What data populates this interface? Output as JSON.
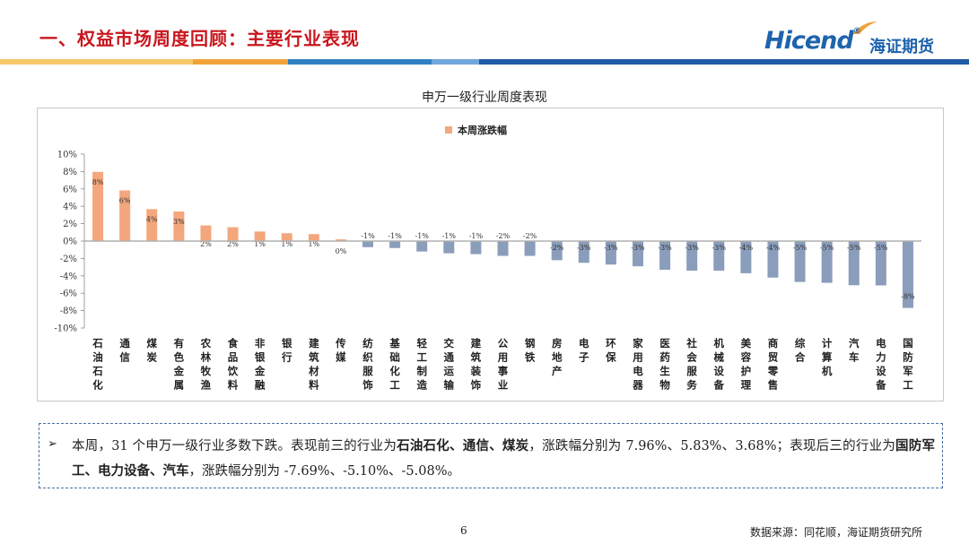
{
  "header": {
    "title": "一、权益市场周度回顾：主要行业表现"
  },
  "logo": {
    "text_en": "Hicend",
    "registered": "®",
    "text_cn": "海证期货"
  },
  "stripe_colors": [
    "#f7c96b",
    "#f2a23a",
    "#2f7fc2",
    "#6fa8dc",
    "#1f5aa6"
  ],
  "chart_data": {
    "type": "bar",
    "title": "申万一级行业周度表现",
    "legend": [
      "本周涨跌幅"
    ],
    "legend_position": "top-center",
    "ylim": [
      -10,
      10
    ],
    "yticks": [
      "10%",
      "8%",
      "6%",
      "4%",
      "2%",
      "0%",
      "-2%",
      "-4%",
      "-6%",
      "-8%",
      "-10%"
    ],
    "ytick_values": [
      10,
      8,
      6,
      4,
      2,
      0,
      -2,
      -4,
      -6,
      -8,
      -10
    ],
    "categories": [
      "石油石化",
      "通信",
      "煤炭",
      "有色金属",
      "农林牧渔",
      "食品饮料",
      "非银金融",
      "银行",
      "建筑材料",
      "传媒",
      "纺织服饰",
      "基础化工",
      "轻工制造",
      "交通运输",
      "建筑装饰",
      "公用事业",
      "钢铁",
      "房地产",
      "电子",
      "环保",
      "家用电器",
      "医药生物",
      "社会服务",
      "机械设备",
      "美容护理",
      "商贸零售",
      "综合",
      "计算机",
      "汽车",
      "电力设备",
      "国防军工"
    ],
    "values": [
      7.96,
      5.83,
      3.68,
      3.4,
      1.8,
      1.6,
      1.1,
      0.9,
      0.8,
      0.2,
      -0.7,
      -0.8,
      -1.2,
      -1.4,
      -1.5,
      -1.7,
      -1.7,
      -2.2,
      -2.5,
      -2.7,
      -2.9,
      -3.3,
      -3.4,
      -3.4,
      -3.7,
      -4.2,
      -4.7,
      -4.8,
      -5.08,
      -5.1,
      -7.69
    ],
    "data_labels": [
      "8%",
      "6%",
      "4%",
      "3%",
      "2%",
      "2%",
      "1%",
      "1%",
      "1%",
      "0%",
      "-1%",
      "-1%",
      "-1%",
      "-1%",
      "-1%",
      "-2%",
      "-2%",
      "-2%",
      "-3%",
      "-3%",
      "-3%",
      "-3%",
      "-3%",
      "-3%",
      "-4%",
      "-4%",
      "-5%",
      "-5%",
      "-5%",
      "-5%",
      "-8%"
    ],
    "positive_color": "#f4a77c",
    "negative_color": "#8a9dbb"
  },
  "summary": {
    "bullet": "➢",
    "segments": [
      {
        "t": "本周，31 个申万一级行业多数下跌。表现前三的行业为",
        "b": false
      },
      {
        "t": "石油石化、通信、煤炭",
        "b": true
      },
      {
        "t": "，涨跌幅分别为 7.96%、5.83%、3.68%；表现后三的行业为",
        "b": false
      },
      {
        "t": "国防军工、电力设备、汽车",
        "b": true
      },
      {
        "t": "，涨跌幅分别为 -7.69%、-5.10%、-5.08%。",
        "b": false
      }
    ]
  },
  "footer": {
    "page_number": "6",
    "source": "数据来源：同花顺，海证期货研究所"
  }
}
